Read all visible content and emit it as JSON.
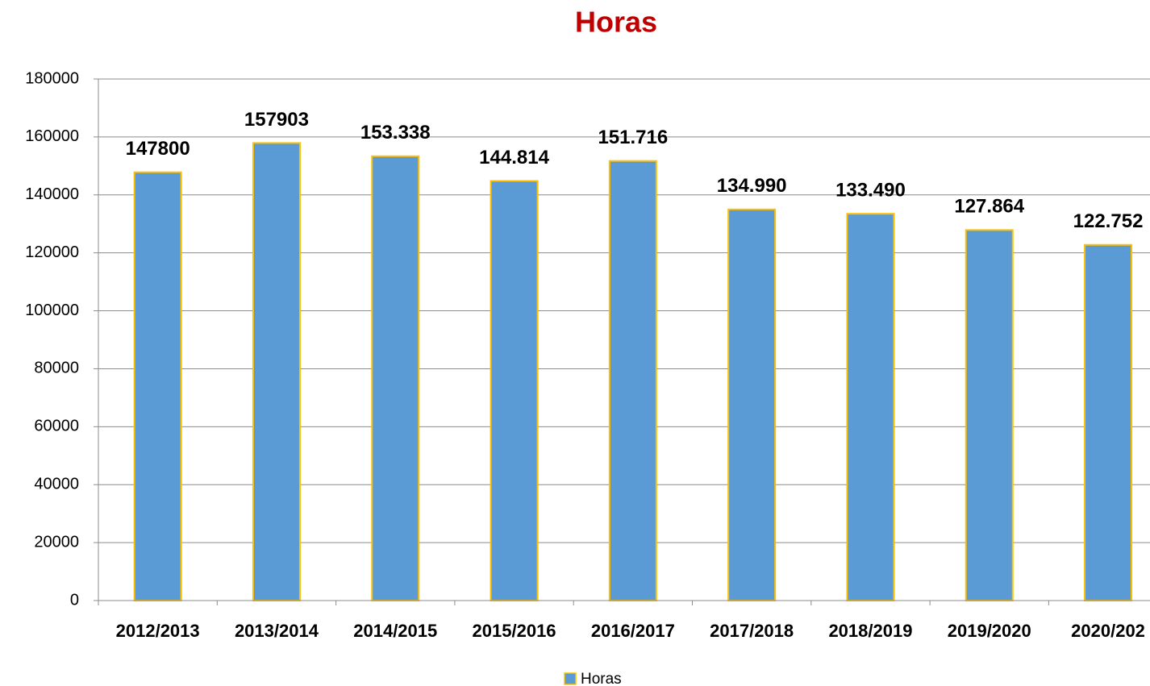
{
  "chart_data": {
    "type": "bar",
    "title": "Horas",
    "categories": [
      "2012/2013",
      "2013/2014",
      "2014/2015",
      "2015/2016",
      "2016/2017",
      "2017/2018",
      "2018/2019",
      "2019/2020",
      "2020/202"
    ],
    "series": [
      {
        "name": "Horas",
        "color": "#5b9bd5",
        "values": [
          147800,
          157903,
          153338,
          144814,
          151716,
          134990,
          133490,
          127864,
          122752
        ],
        "value_labels": [
          "147800",
          "157903",
          "153.338",
          "144.814",
          "151.716",
          "134.990",
          "133.490",
          "127.864",
          "122.752"
        ]
      }
    ],
    "ylim": [
      0,
      180000
    ],
    "yticks": [
      0,
      20000,
      40000,
      60000,
      80000,
      100000,
      120000,
      140000,
      160000,
      180000
    ],
    "grid": true,
    "legend": "bottom"
  }
}
